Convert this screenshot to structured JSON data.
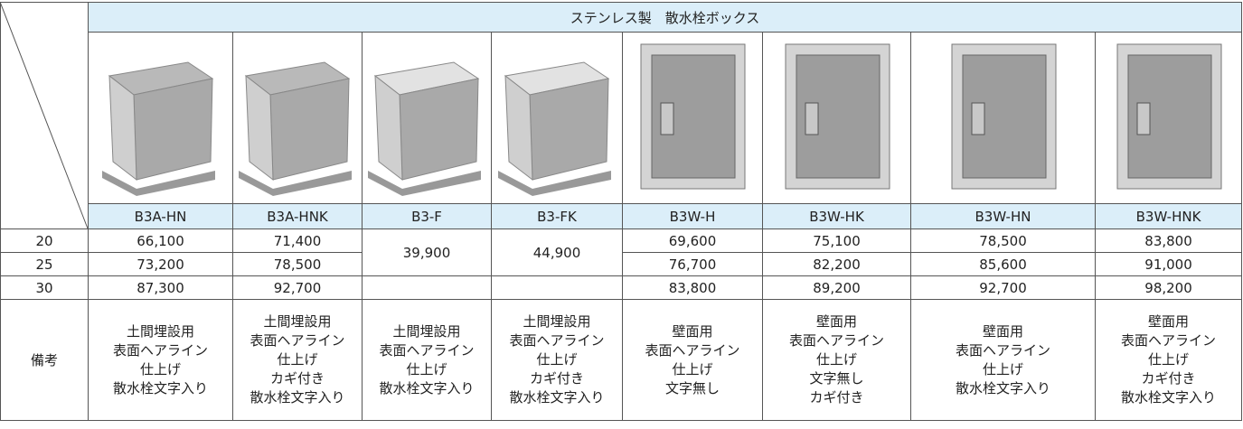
{
  "table": {
    "title": "ステンレス製　散水栓ボックス",
    "models": [
      "B3A-HN",
      "B3A-HNK",
      "B3-F",
      "B3-FK",
      "B3W-H",
      "B3W-HK",
      "B3W-HN",
      "B3W-HNK"
    ],
    "rows": [
      {
        "size": "20",
        "prices": [
          "66,100",
          "71,400",
          "39,900",
          "44,900",
          "69,600",
          "75,100",
          "78,500",
          "83,800"
        ]
      },
      {
        "size": "25",
        "prices": [
          "73,200",
          "78,500",
          null,
          null,
          "76,700",
          "82,200",
          "85,600",
          "91,000"
        ]
      },
      {
        "size": "30",
        "prices": [
          "87,300",
          "92,700",
          null,
          null,
          "83,800",
          "89,200",
          "92,700",
          "98,200"
        ]
      }
    ],
    "notes_label": "備考",
    "notes": [
      [
        "土間埋設用",
        "表面ヘアライン",
        "仕上げ",
        "散水栓文字入り"
      ],
      [
        "土間埋設用",
        "表面ヘアライン",
        "仕上げ",
        "カギ付き",
        "散水栓文字入り"
      ],
      [
        "土間埋設用",
        "表面ヘアライン",
        "仕上げ",
        "散水栓文字入り"
      ],
      [
        "土間埋設用",
        "表面ヘアライン",
        "仕上げ",
        "カギ付き",
        "散水栓文字入り"
      ],
      [
        "壁面用",
        "表面ヘアライン",
        "仕上げ",
        "文字無し"
      ],
      [
        "壁面用",
        "表面ヘアライン",
        "仕上げ",
        "文字無し",
        "カギ付き"
      ],
      [
        "壁面用",
        "表面ヘアライン",
        "仕上げ",
        "散水栓文字入り"
      ],
      [
        "壁面用",
        "表面ヘアライン",
        "仕上げ",
        "カギ付き",
        "散水栓文字入り"
      ]
    ]
  }
}
